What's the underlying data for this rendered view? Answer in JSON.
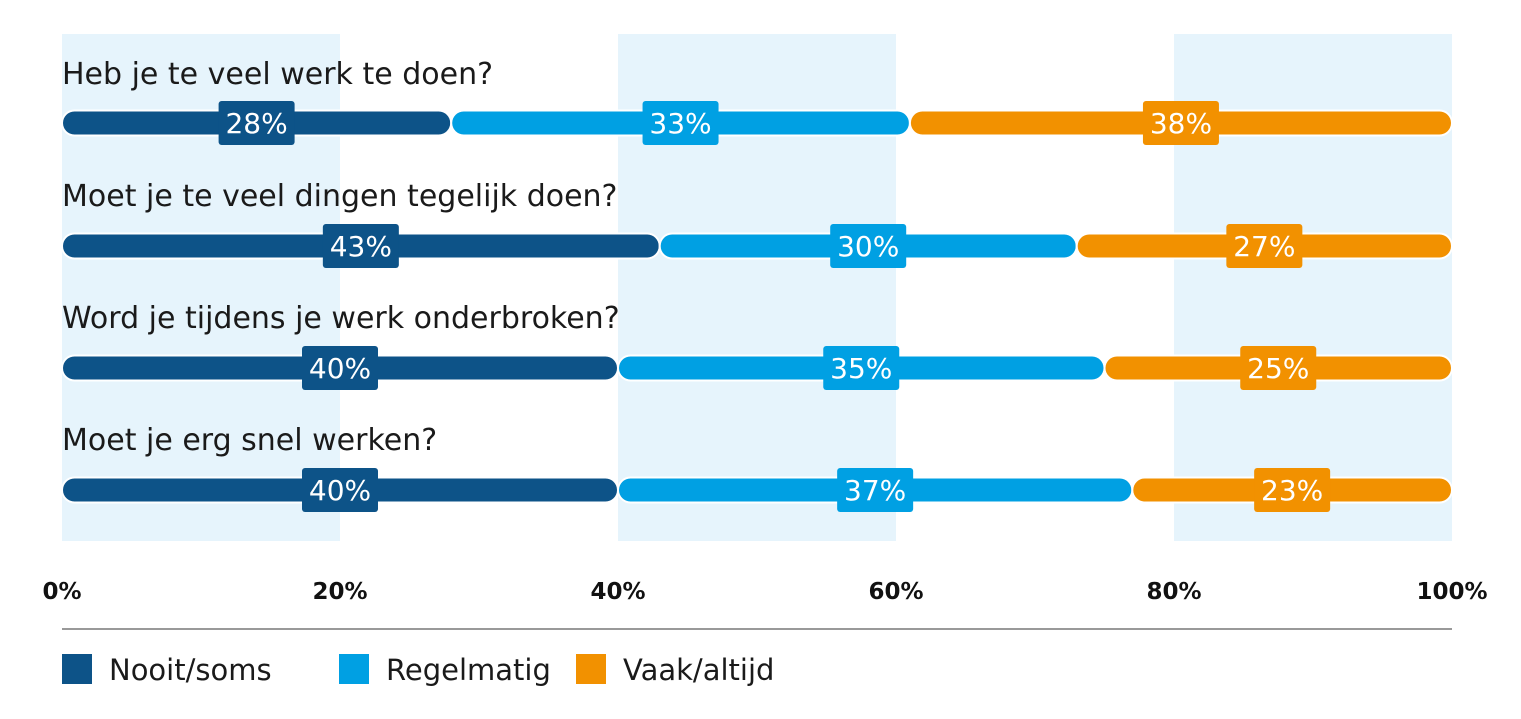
{
  "chart_data": {
    "type": "bar",
    "orientation": "horizontal",
    "stacked": true,
    "percent": true,
    "categories": [
      "Heb je te veel werk te doen?",
      "Moet je te veel dingen tegelijk doen?",
      "Word je tijdens je werk onderbroken?",
      "Moet je erg snel werken?"
    ],
    "series": [
      {
        "name": "Nooit/soms",
        "color": "#0d5388",
        "values": [
          28,
          43,
          40,
          40
        ]
      },
      {
        "name": "Regelmatig",
        "color": "#00a0e3",
        "values": [
          33,
          30,
          35,
          37
        ]
      },
      {
        "name": "Vaak/altijd",
        "color": "#f29100",
        "values": [
          38,
          27,
          25,
          23
        ]
      }
    ],
    "data_labels": [
      [
        "28%",
        "33%",
        "38%"
      ],
      [
        "43%",
        "30%",
        "27%"
      ],
      [
        "40%",
        "35%",
        "25%"
      ],
      [
        "40%",
        "37%",
        "23%"
      ]
    ],
    "xlim": [
      0,
      100
    ],
    "x_ticks": [
      "0%",
      "20%",
      "40%",
      "60%",
      "80%",
      "100%"
    ],
    "title": "",
    "xlabel": "",
    "ylabel": "",
    "grid": "alternating shaded bands",
    "band_color": "#e6f4fc",
    "legend": "bottom-left"
  }
}
